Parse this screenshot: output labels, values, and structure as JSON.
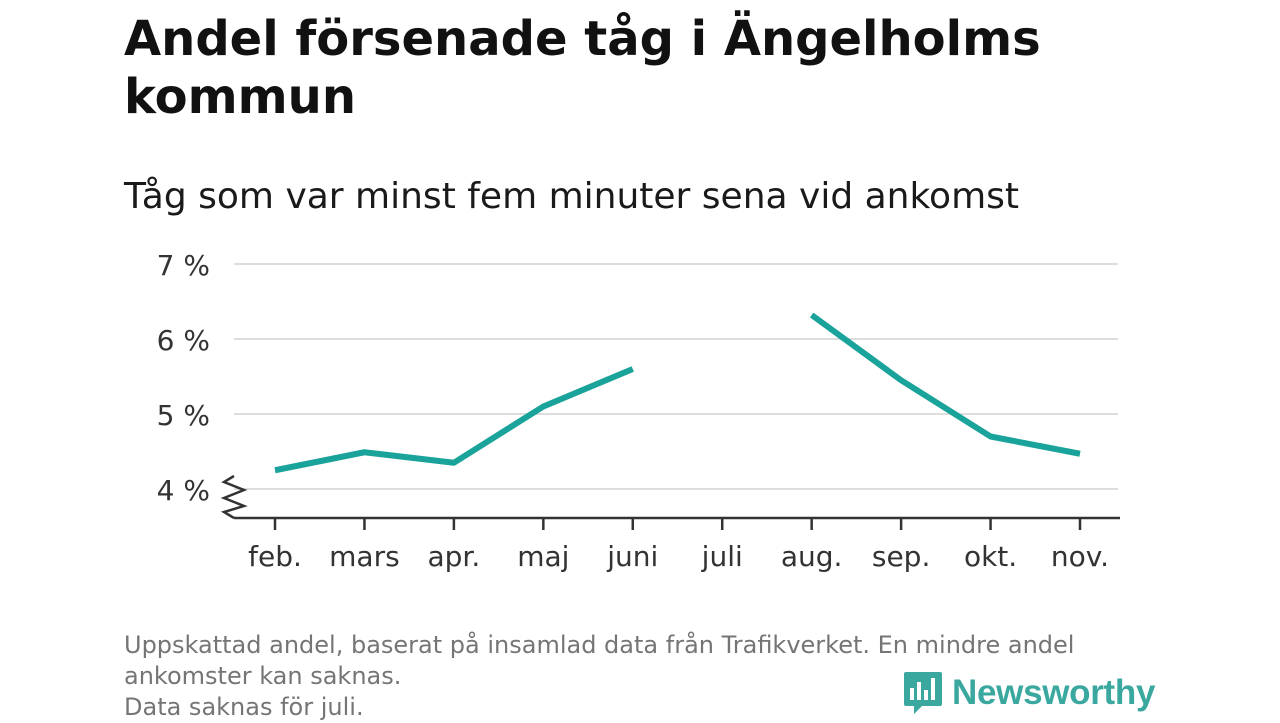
{
  "title": "Andel försenade tåg i Ängelholms kommun",
  "subtitle": "Tåg som var minst fem minuter sena vid ankomst",
  "footnote": {
    "line1": "Uppskattad andel, baserat på insamlad data från Trafikverket. En mindre andel ankomster kan saknas.",
    "line2": "Data saknas för juli."
  },
  "brand": {
    "name": "Newsworthy",
    "icon": "bar-chart-speech-bubble-icon"
  },
  "colors": {
    "line": "#1aa39a",
    "grid": "#dddddd",
    "axis": "#333333",
    "brand": "#3ba8a0"
  },
  "chart_data": {
    "type": "line",
    "categories": [
      "feb.",
      "mars",
      "apr.",
      "maj",
      "juni",
      "juli",
      "aug.",
      "sep.",
      "okt.",
      "nov."
    ],
    "series": [
      {
        "values": [
          4.25,
          4.49,
          4.35,
          5.1,
          5.6,
          null,
          6.32,
          5.45,
          4.7,
          4.47
        ]
      }
    ],
    "yticks": [
      4,
      5,
      6,
      7
    ],
    "ytick_labels": [
      "4 %",
      "5 %",
      "6 %",
      "7 %"
    ],
    "ylim": [
      3.6,
      7
    ],
    "axis_break": true,
    "grid": true,
    "legend": "none"
  }
}
